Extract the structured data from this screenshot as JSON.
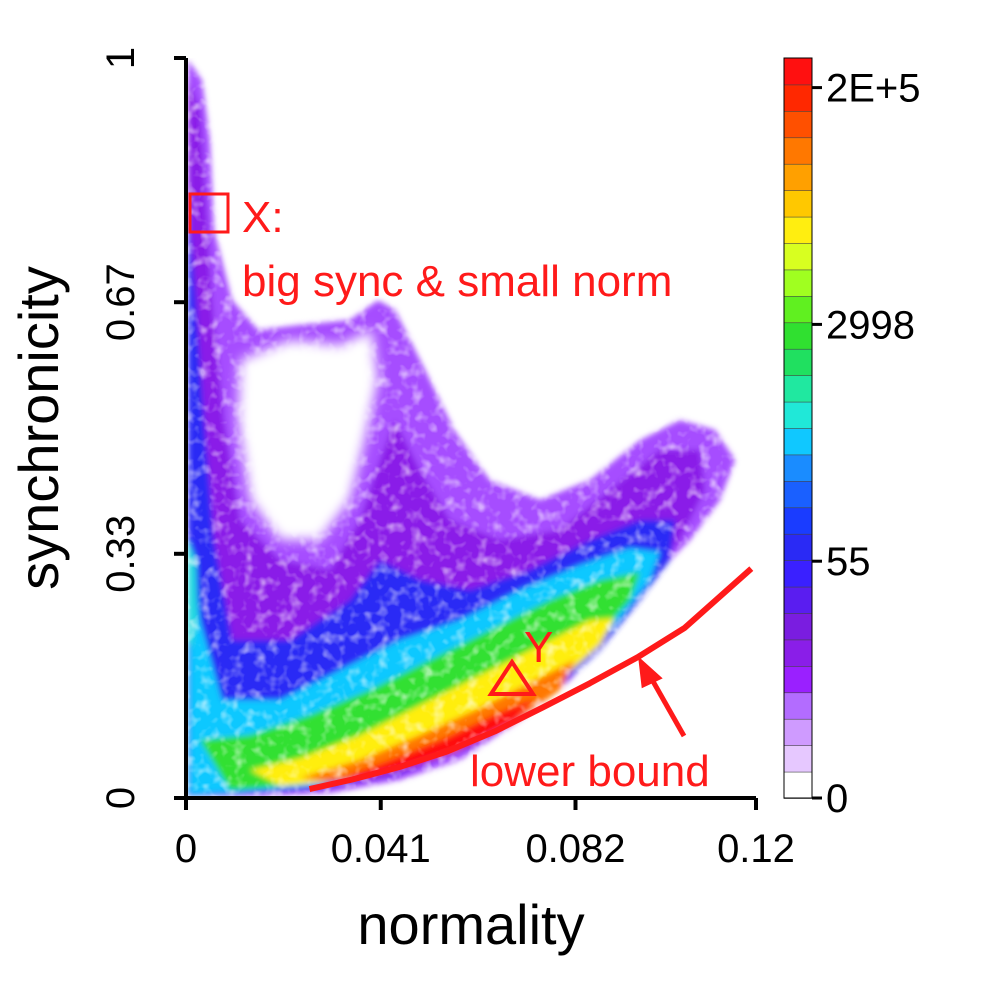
{
  "chart_data": {
    "type": "heatmap",
    "title": "",
    "xlabel": "normality",
    "ylabel": "synchronicity",
    "xlim": [
      0,
      0.12
    ],
    "ylim": [
      0,
      1
    ],
    "x_ticks": [
      "0",
      "0.041",
      "0.082",
      "0.12"
    ],
    "x_tick_values": [
      0,
      0.041,
      0.082,
      0.12
    ],
    "y_ticks": [
      "0",
      "0.33",
      "0.67",
      "1"
    ],
    "y_tick_values": [
      0,
      0.33,
      0.67,
      1
    ],
    "colorbar": {
      "scale": "log",
      "tick_labels": [
        "0",
        "55",
        "2998",
        "2E+5"
      ],
      "colors": [
        "#ffffff",
        "#e6c8ff",
        "#cf9bff",
        "#b36cff",
        "#9a20ff",
        "#8a1ee8",
        "#7a1de0",
        "#5a1df0",
        "#3a20ff",
        "#2a2af5",
        "#1a3cff",
        "#1a60ff",
        "#1a8cff",
        "#10c8ff",
        "#20e8d8",
        "#20e8a0",
        "#20e060",
        "#30e030",
        "#60f020",
        "#a0ff20",
        "#d8ff20",
        "#ffee10",
        "#ffc800",
        "#ffa000",
        "#ff7800",
        "#ff5000",
        "#ff2800",
        "#ff1010"
      ]
    },
    "lower_bound_curve": {
      "x": [
        0.026,
        0.035,
        0.045,
        0.055,
        0.065,
        0.075,
        0.085,
        0.095,
        0.105,
        0.112,
        0.119
      ],
      "y": [
        0.012,
        0.025,
        0.042,
        0.063,
        0.09,
        0.122,
        0.155,
        0.19,
        0.23,
        0.27,
        0.31
      ]
    },
    "annotations": {
      "x_marker": {
        "label": "X:",
        "description": "big sync & small norm"
      },
      "y_marker": {
        "label": "Y"
      },
      "lower_bound": {
        "label": "lower bound"
      }
    },
    "color_accent": "#ff1a1a"
  }
}
